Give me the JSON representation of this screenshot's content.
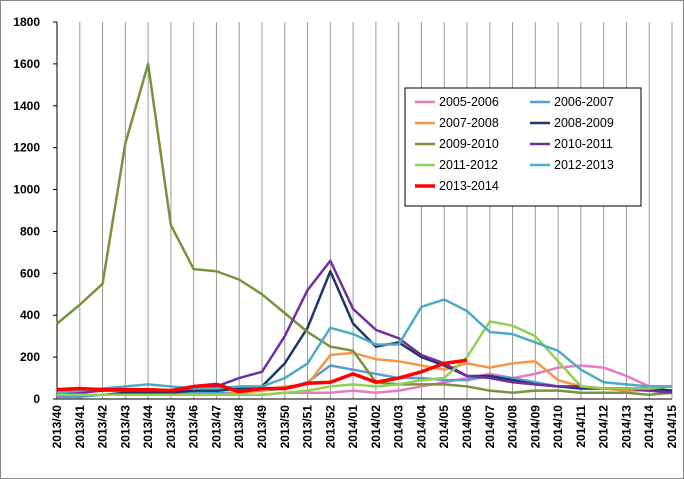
{
  "chart_data": {
    "type": "line",
    "categories": [
      "2013/40",
      "2013/41",
      "2013/42",
      "2013/43",
      "2013/44",
      "2013/45",
      "2013/46",
      "2013/47",
      "2013/48",
      "2013/49",
      "2013/50",
      "2013/51",
      "2013/52",
      "2014/01",
      "2014/02",
      "2014/03",
      "2014/04",
      "2014/05",
      "2014/06",
      "2014/07",
      "2014/08",
      "2014/09",
      "2014/10",
      "2014/11",
      "2014/12",
      "2014/13",
      "2014/14",
      "2014/15"
    ],
    "series": [
      {
        "name": "2005-2006",
        "color": "#e87ac0",
        "values": [
          20,
          20,
          20,
          20,
          20,
          20,
          20,
          20,
          20,
          20,
          30,
          30,
          30,
          40,
          30,
          40,
          60,
          80,
          100,
          120,
          100,
          120,
          150,
          160,
          150,
          110,
          60,
          30
        ]
      },
      {
        "name": "2006-2007",
        "color": "#5b9bd5",
        "values": [
          10,
          10,
          20,
          20,
          20,
          20,
          30,
          30,
          30,
          40,
          50,
          80,
          160,
          140,
          120,
          100,
          100,
          90,
          90,
          110,
          100,
          80,
          60,
          50,
          50,
          50,
          50,
          40
        ]
      },
      {
        "name": "2007-2008",
        "color": "#f79646",
        "values": [
          20,
          20,
          20,
          20,
          20,
          20,
          20,
          20,
          30,
          40,
          60,
          70,
          210,
          220,
          190,
          180,
          160,
          140,
          170,
          150,
          170,
          180,
          90,
          60,
          50,
          40,
          40,
          30
        ]
      },
      {
        "name": "2008-2009",
        "color": "#1f3864",
        "values": [
          20,
          20,
          20,
          30,
          30,
          30,
          40,
          40,
          50,
          60,
          170,
          340,
          610,
          360,
          250,
          270,
          200,
          160,
          110,
          110,
          90,
          70,
          60,
          50,
          50,
          50,
          50,
          40
        ]
      },
      {
        "name": "2009-2010",
        "color": "#77933c",
        "values": [
          360,
          450,
          550,
          1220,
          1600,
          830,
          620,
          610,
          570,
          500,
          410,
          320,
          250,
          230,
          80,
          70,
          70,
          70,
          60,
          40,
          30,
          40,
          40,
          30,
          30,
          30,
          20,
          30
        ]
      },
      {
        "name": "2010-2011",
        "color": "#7030a0",
        "values": [
          30,
          30,
          40,
          40,
          40,
          40,
          50,
          60,
          100,
          130,
          300,
          520,
          660,
          430,
          330,
          290,
          210,
          170,
          110,
          100,
          80,
          70,
          60,
          60,
          50,
          50,
          40,
          30
        ]
      },
      {
        "name": "2011-2012",
        "color": "#92d050",
        "values": [
          20,
          20,
          20,
          20,
          20,
          20,
          20,
          20,
          20,
          20,
          30,
          40,
          60,
          70,
          60,
          70,
          90,
          100,
          200,
          370,
          350,
          300,
          180,
          60,
          50,
          50,
          50,
          60
        ]
      },
      {
        "name": "2012-2013",
        "color": "#4bacc6",
        "values": [
          30,
          40,
          50,
          60,
          70,
          60,
          50,
          50,
          60,
          60,
          100,
          170,
          340,
          310,
          260,
          260,
          440,
          475,
          420,
          320,
          310,
          270,
          230,
          140,
          80,
          70,
          60,
          60
        ]
      },
      {
        "name": "2013-2014",
        "color": "#ff0000",
        "values": [
          45,
          50,
          45,
          45,
          45,
          40,
          60,
          70,
          35,
          50,
          50,
          75,
          80,
          120,
          80,
          100,
          130,
          170,
          185,
          null,
          null,
          null,
          null,
          null,
          null,
          null,
          null,
          null
        ]
      }
    ],
    "ylim": [
      0,
      1800
    ],
    "yticks": [
      0,
      200,
      400,
      600,
      800,
      1000,
      1200,
      1400,
      1600,
      1800
    ],
    "grid": "x",
    "legend": "top-right"
  }
}
